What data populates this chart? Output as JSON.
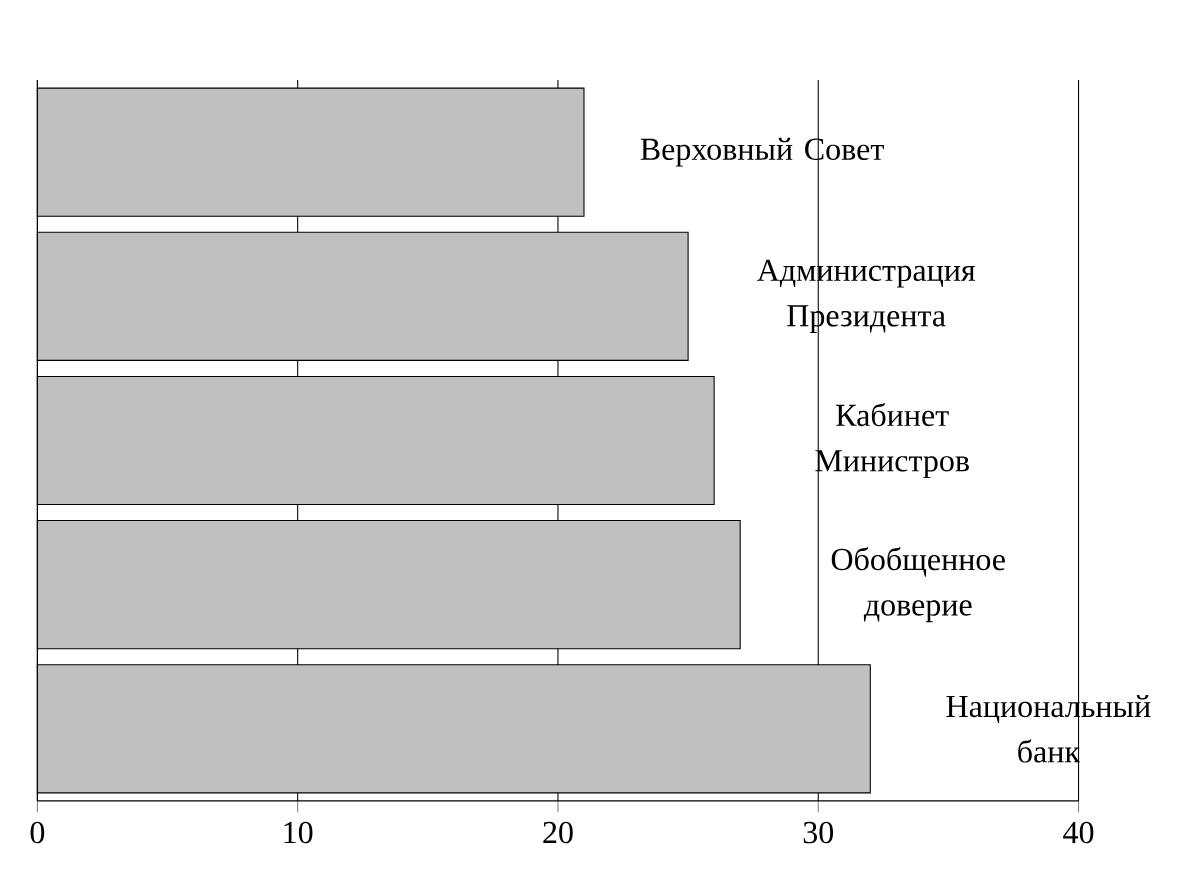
{
  "chart_data": {
    "type": "bar",
    "orientation": "horizontal",
    "categories": [
      "Верховный Совет",
      "Администрация Президента",
      "Кабинет Министров",
      "Обобщенное доверие",
      "Национальный банк"
    ],
    "values": [
      21,
      25,
      26,
      27,
      32
    ],
    "color": "#c0c0c0",
    "xlim": [
      0,
      40
    ],
    "xticks": [
      0,
      10,
      20,
      30,
      40
    ],
    "grid": "x",
    "tick_labels": "x"
  }
}
